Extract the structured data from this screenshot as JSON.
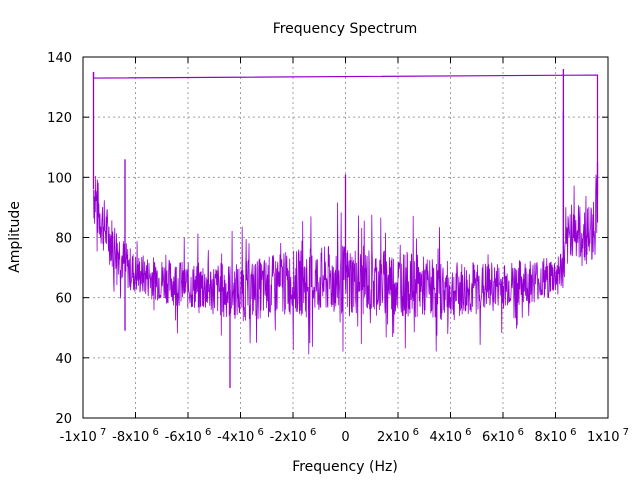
{
  "chart_data": {
    "type": "line",
    "title": "Frequency Spectrum",
    "xlabel": "Frequency (Hz)",
    "ylabel": "Amplitude",
    "xlim": [
      -10000000,
      10000000
    ],
    "ylim": [
      20,
      140
    ],
    "grid": true,
    "legend": "none",
    "series_color": "#9400d3",
    "x_ticks": [
      {
        "value": -10000000,
        "mant": "-1x10",
        "exp": "7"
      },
      {
        "value": -8000000,
        "mant": "-8x10",
        "exp": "6"
      },
      {
        "value": -6000000,
        "mant": "-6x10",
        "exp": "6"
      },
      {
        "value": -4000000,
        "mant": "-4x10",
        "exp": "6"
      },
      {
        "value": -2000000,
        "mant": "-2x10",
        "exp": "6"
      },
      {
        "value": 0,
        "mant": "0",
        "exp": ""
      },
      {
        "value": 2000000,
        "mant": "2x10",
        "exp": "6"
      },
      {
        "value": 4000000,
        "mant": "4x10",
        "exp": "6"
      },
      {
        "value": 6000000,
        "mant": "6x10",
        "exp": "6"
      },
      {
        "value": 8000000,
        "mant": "8x10",
        "exp": "6"
      },
      {
        "value": 10000000,
        "mant": "1x10",
        "exp": "7"
      }
    ],
    "y_ticks": [
      {
        "value": 20,
        "label": "20"
      },
      {
        "value": 40,
        "label": "40"
      },
      {
        "value": 60,
        "label": "60"
      },
      {
        "value": 80,
        "label": "80"
      },
      {
        "value": 100,
        "label": "100"
      },
      {
        "value": 120,
        "label": "120"
      },
      {
        "value": 140,
        "label": "140"
      }
    ],
    "envelope": {
      "x": [
        -9600000,
        -9400000,
        -9000000,
        -8600000,
        -8400000,
        -8000000,
        -6000000,
        -4000000,
        -2000000,
        0,
        2000000,
        4000000,
        6000000,
        8000000,
        8300000,
        8600000,
        9000000,
        9400000,
        9600000
      ],
      "mean": [
        96,
        88,
        80,
        75,
        71,
        68,
        64,
        62,
        65,
        66,
        65,
        62,
        64,
        67,
        70,
        84,
        80,
        82,
        94
      ],
      "spread": [
        12,
        10,
        9,
        8,
        8,
        7,
        8,
        10,
        11,
        12,
        11,
        10,
        8,
        7,
        8,
        10,
        10,
        10,
        12
      ]
    },
    "spikes": [
      {
        "x": -9600000,
        "y": 135
      },
      {
        "x": -8400000,
        "y": 106
      },
      {
        "x": -8400000,
        "y": 49
      },
      {
        "x": 0,
        "y": 101
      },
      {
        "x": -4400000,
        "y": 30
      },
      {
        "x": 8300000,
        "y": 136
      },
      {
        "x": 8300000,
        "y": 122
      },
      {
        "x": 9600000,
        "y": 105
      }
    ],
    "boundary_line": {
      "x": [
        -9600000,
        -9600000,
        9600000,
        9600000
      ],
      "y": [
        135,
        133,
        134,
        85
      ]
    }
  }
}
